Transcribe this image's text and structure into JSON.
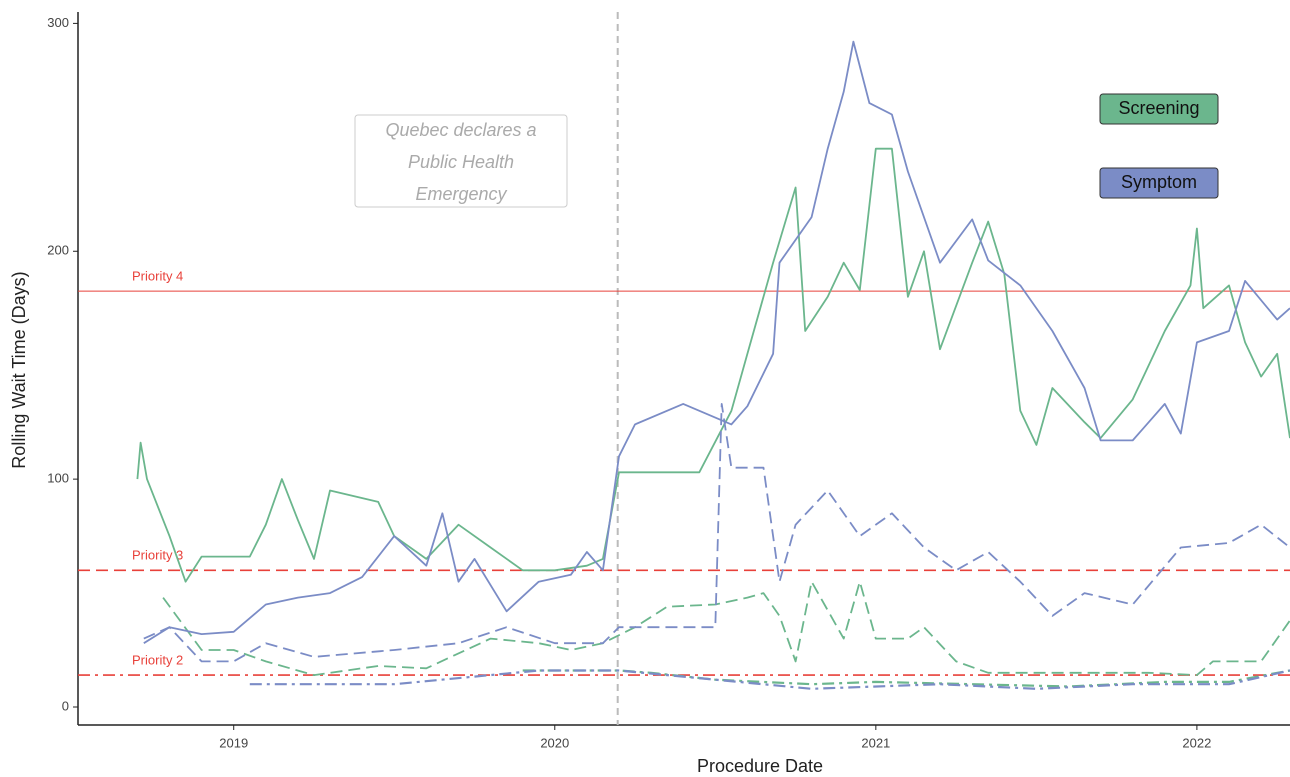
{
  "chart_data": {
    "type": "line",
    "x_label": "Procedure Date",
    "y_label": "Rolling Wait Time (Days)",
    "xlim": [
      2018.515,
      2022.29
    ],
    "ylim": [
      -7.9,
      305
    ],
    "xticks": [
      2019,
      2020,
      2021,
      2022
    ],
    "yticks": [
      0,
      100,
      200,
      300
    ],
    "legend": "top right",
    "series": [
      {
        "name": "Screening",
        "color": "#6bb68d",
        "lines": [
          {
            "style": "solid",
            "x": [
              2018.7,
              2018.71,
              2018.73,
              2018.8,
              2018.85,
              2018.9,
              2019.05,
              2019.1,
              2019.15,
              2019.2,
              2019.25,
              2019.3,
              2019.45,
              2019.5,
              2019.6,
              2019.7,
              2019.8,
              2019.9,
              2020.0,
              2020.1,
              2020.15,
              2020.2,
              2020.45,
              2020.55,
              2020.6,
              2020.68,
              2020.75,
              2020.78,
              2020.85,
              2020.9,
              2020.95,
              2021.0,
              2021.05,
              2021.1,
              2021.15,
              2021.2,
              2021.3,
              2021.35,
              2021.4,
              2021.45,
              2021.5,
              2021.55,
              2021.65,
              2021.7,
              2021.8,
              2021.9,
              2021.98,
              2022.0,
              2022.02,
              2022.1,
              2022.15,
              2022.2,
              2022.25,
              2022.29
            ],
            "values": [
              100,
              116,
              100,
              75,
              55,
              66,
              66,
              80,
              100,
              82,
              65,
              95,
              90,
              75,
              65,
              80,
              70,
              60,
              60,
              62,
              65,
              103,
              103,
              130,
              155,
              195,
              228,
              165,
              180,
              195,
              183,
              245,
              245,
              180,
              200,
              157,
              195,
              213,
              190,
              130,
              115,
              140,
              125,
              118,
              135,
              165,
              185,
              210,
              175,
              185,
              160,
              145,
              155,
              118
            ]
          },
          {
            "style": "dashed",
            "x": [
              2018.78,
              2018.9,
              2019.0,
              2019.1,
              2019.25,
              2019.45,
              2019.6,
              2019.8,
              2019.95,
              2020.05,
              2020.15,
              2020.25,
              2020.35,
              2020.5,
              2020.6,
              2020.65,
              2020.7,
              2020.75,
              2020.8,
              2020.9,
              2020.95,
              2021.0,
              2021.1,
              2021.15,
              2021.25,
              2021.35,
              2021.5,
              2021.7,
              2021.85,
              2022.0,
              2022.05,
              2022.2,
              2022.29
            ],
            "values": [
              48,
              25,
              25,
              20,
              14,
              18,
              17,
              30,
              28,
              25,
              28,
              35,
              44,
              45,
              48,
              50,
              40,
              20,
              55,
              30,
              55,
              30,
              30,
              35,
              20,
              15,
              15,
              15,
              15,
              14,
              20,
              20,
              38
            ]
          },
          {
            "style": "dashdot",
            "x": [
              2019.9,
              2020.0,
              2020.2,
              2020.3,
              2020.5,
              2020.8,
              2021.0,
              2021.3,
              2021.6,
              2021.9,
              2022.1,
              2022.29
            ],
            "values": [
              16,
              16,
              16,
              15,
              12,
              10,
              11,
              10,
              9,
              11,
              11,
              16
            ]
          }
        ]
      },
      {
        "name": "Symptom",
        "color": "#7b8cc6",
        "lines": [
          {
            "style": "solid",
            "x": [
              2018.72,
              2018.8,
              2018.9,
              2019.0,
              2019.1,
              2019.2,
              2019.3,
              2019.4,
              2019.5,
              2019.6,
              2019.65,
              2019.7,
              2019.75,
              2019.85,
              2019.95,
              2020.05,
              2020.1,
              2020.15,
              2020.2,
              2020.25,
              2020.4,
              2020.55,
              2020.6,
              2020.68,
              2020.7,
              2020.8,
              2020.85,
              2020.9,
              2020.93,
              2020.98,
              2021.05,
              2021.1,
              2021.2,
              2021.3,
              2021.35,
              2021.45,
              2021.55,
              2021.65,
              2021.7,
              2021.8,
              2021.9,
              2021.95,
              2022.0,
              2022.1,
              2022.15,
              2022.25,
              2022.29
            ],
            "values": [
              28,
              35,
              32,
              33,
              45,
              48,
              50,
              57,
              75,
              62,
              85,
              55,
              65,
              42,
              55,
              58,
              68,
              60,
              110,
              124,
              133,
              124,
              132,
              155,
              195,
              215,
              245,
              270,
              292,
              265,
              260,
              235,
              195,
              214,
              196,
              185,
              165,
              140,
              117,
              117,
              133,
              120,
              160,
              165,
              187,
              170,
              175
            ]
          },
          {
            "style": "dashed",
            "x": [
              2018.72,
              2018.8,
              2018.9,
              2019.0,
              2019.1,
              2019.25,
              2019.5,
              2019.7,
              2019.85,
              2020.0,
              2020.15,
              2020.2,
              2020.4,
              2020.5,
              2020.52,
              2020.55,
              2020.65,
              2020.7,
              2020.75,
              2020.85,
              2020.95,
              2021.05,
              2021.15,
              2021.25,
              2021.35,
              2021.45,
              2021.55,
              2021.65,
              2021.8,
              2021.95,
              2022.1,
              2022.2,
              2022.29
            ],
            "values": [
              30,
              35,
              20,
              20,
              28,
              22,
              25,
              28,
              35,
              28,
              28,
              35,
              35,
              35,
              133,
              105,
              105,
              55,
              80,
              95,
              75,
              85,
              70,
              60,
              68,
              55,
              40,
              50,
              45,
              70,
              72,
              80,
              70
            ]
          },
          {
            "style": "dashdot",
            "x": [
              2019.05,
              2019.5,
              2019.95,
              2020.2,
              2020.5,
              2020.8,
              2021.2,
              2021.5,
              2021.8,
              2022.1,
              2022.29
            ],
            "values": [
              10,
              10,
              16,
              16,
              12,
              8,
              10,
              8,
              10,
              10,
              16
            ]
          }
        ]
      }
    ],
    "reference_lines": [
      {
        "label": "Priority 4",
        "value": 182.5,
        "style": "solid"
      },
      {
        "label": "Priority 3",
        "value": 60,
        "style": "dashed"
      },
      {
        "label": "Priority 2",
        "value": 14,
        "style": "dashdot"
      }
    ],
    "reference_color": "#e8413a",
    "event": {
      "x": 2020.196,
      "annotation": [
        "Quebec declares a",
        "Public Health",
        "Emergency"
      ]
    }
  }
}
